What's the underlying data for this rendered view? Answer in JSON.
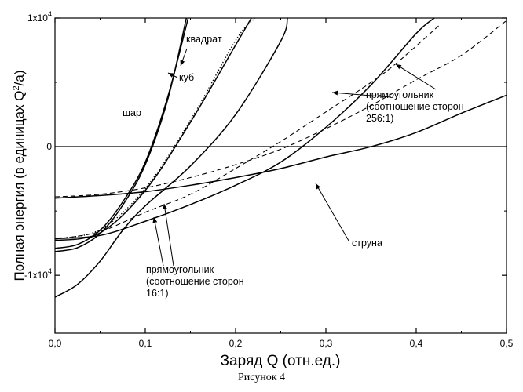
{
  "caption": "Рисунок 4",
  "chart_data": {
    "type": "line",
    "xlabel": "Заряд Q (отн.ед.)",
    "ylabel": "Полная энергия (в единицах Q²/a)",
    "xlim": [
      0,
      0.5
    ],
    "ylim": [
      -14500,
      10000
    ],
    "xticks": [
      {
        "value": 0.0,
        "label": "0,0"
      },
      {
        "value": 0.1,
        "label": "0,1"
      },
      {
        "value": 0.2,
        "label": "0,2"
      },
      {
        "value": 0.3,
        "label": "0,3"
      },
      {
        "value": 0.4,
        "label": "0,4"
      },
      {
        "value": 0.5,
        "label": "0,5"
      }
    ],
    "yticks": [
      {
        "value": 10000,
        "base": "1x10",
        "exp": "4"
      },
      {
        "value": 0,
        "base": "0",
        "exp": ""
      },
      {
        "value": -10000,
        "base": "-1x10",
        "exp": "4"
      }
    ],
    "grid": false,
    "series": [
      {
        "name": "шар",
        "style": "solid",
        "x": [
          0,
          0.025,
          0.05,
          0.075,
          0.1,
          0.125,
          0.1475
        ],
        "y": [
          -7900,
          -7600,
          -6500,
          -4300,
          -1200,
          3900,
          10000
        ]
      },
      {
        "name": "шар",
        "style": "solid",
        "x": [
          0,
          0.025,
          0.05,
          0.075,
          0.1,
          0.125,
          0.1455
        ],
        "y": [
          -8150,
          -7850,
          -6750,
          -4550,
          -1400,
          3700,
          10000
        ]
      },
      {
        "name": "куб",
        "style": "solid",
        "x": [
          0,
          0.05,
          0.1,
          0.15,
          0.2,
          0.2175
        ],
        "y": [
          -7300,
          -6700,
          -3400,
          1900,
          7900,
          10000
        ]
      },
      {
        "name": "квадрат",
        "style": "dotted",
        "x": [
          0,
          0.05,
          0.1,
          0.15,
          0.2,
          0.2215
        ],
        "y": [
          -7150,
          -6450,
          -3250,
          2050,
          8250,
          10000
        ]
      },
      {
        "name": "прямоугольник (соотношение сторон 16:1)",
        "style": "solid",
        "x": [
          0,
          0.025,
          0.05,
          0.075,
          0.1,
          0.15,
          0.2,
          0.25,
          0.2575
        ],
        "y": [
          -11700,
          -10700,
          -8900,
          -6500,
          -4600,
          -1500,
          2500,
          8200,
          10000
        ]
      },
      {
        "name": "прямоугольник (соотношение сторон 16:1)",
        "style": "dashed",
        "x": [
          0,
          0.05,
          0.1,
          0.15,
          0.2,
          0.25,
          0.3,
          0.35,
          0.38,
          0.425
        ],
        "y": [
          -7200,
          -6600,
          -5100,
          -3700,
          -1700,
          400,
          2700,
          5000,
          6600,
          9400
        ]
      },
      {
        "name": "прямоугольник (соотношение сторон 256:1)",
        "style": "solid",
        "x": [
          0,
          0.05,
          0.1,
          0.15,
          0.2,
          0.25,
          0.3,
          0.35,
          0.4,
          0.42
        ],
        "y": [
          -7150,
          -6900,
          -5800,
          -4500,
          -3000,
          -1200,
          1500,
          4800,
          8800,
          10000
        ]
      },
      {
        "name": "прямоугольник (соотношение сторон 256:1)",
        "style": "dashed",
        "x": [
          0,
          0.05,
          0.1,
          0.15,
          0.2,
          0.25,
          0.3,
          0.35,
          0.4,
          0.45,
          0.5
        ],
        "y": [
          -3900,
          -3700,
          -3200,
          -2400,
          -1400,
          -200,
          1400,
          3200,
          5200,
          7100,
          9800
        ]
      },
      {
        "name": "струна",
        "style": "solid",
        "x": [
          0,
          0.05,
          0.1,
          0.15,
          0.2,
          0.25,
          0.3,
          0.35,
          0.4,
          0.45,
          0.5
        ],
        "y": [
          -4000,
          -3800,
          -3500,
          -3000,
          -2400,
          -1700,
          -800,
          0,
          1100,
          2600,
          4000
        ]
      },
      {
        "name": "",
        "style": "solid",
        "x": [
          0,
          0.5
        ],
        "y": [
          0,
          0
        ]
      }
    ],
    "annotations": [
      {
        "id": "shar",
        "text": [
          "шар"
        ]
      },
      {
        "id": "kub",
        "text": [
          "куб"
        ]
      },
      {
        "id": "kvadrat",
        "text": [
          "квадрат"
        ]
      },
      {
        "id": "rect16",
        "text": [
          "прямоугольник",
          "(соотношение сторон",
          "16:1)"
        ]
      },
      {
        "id": "rect256",
        "text": [
          "прямоугольник",
          "(соотношение сторон",
          "256:1)"
        ]
      },
      {
        "id": "struna",
        "text": [
          "струна"
        ]
      }
    ]
  }
}
